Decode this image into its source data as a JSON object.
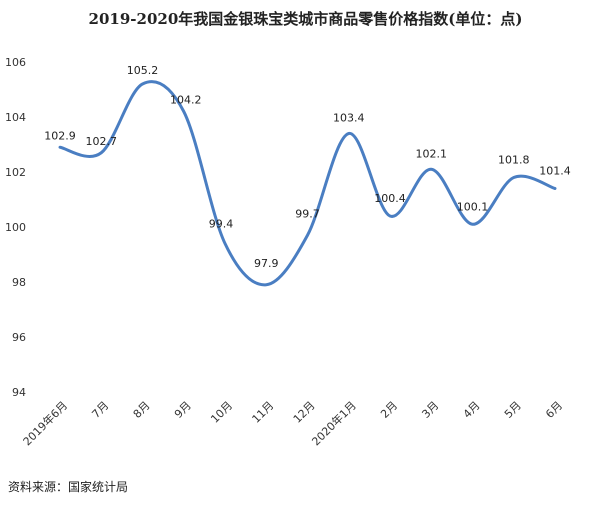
{
  "title": "2019-2020年我国金银珠宝类城市商品零售价格指数(单位：点)",
  "source": "资料来源：国家统计局",
  "chart_data": {
    "type": "line",
    "title": "2019-2020年我国金银珠宝类城市商品零售价格指数(单位：点)",
    "xlabel": "",
    "ylabel": "",
    "categories": [
      "2019年6月",
      "7月",
      "8月",
      "9月",
      "10月",
      "11月",
      "12月",
      "2020年1月",
      "2月",
      "3月",
      "4月",
      "5月",
      "6月"
    ],
    "series": [
      {
        "values": [
          102.9,
          102.7,
          105.2,
          104.2,
          99.4,
          97.9,
          99.7,
          103.4,
          100.4,
          102.1,
          100.1,
          101.8,
          101.4
        ],
        "color": "#4A7EC2"
      }
    ],
    "ylim": [
      94,
      106
    ],
    "yticks": [
      94,
      96,
      98,
      100,
      102,
      104,
      106
    ],
    "grid": false,
    "legend": "none",
    "smooth": true
  }
}
